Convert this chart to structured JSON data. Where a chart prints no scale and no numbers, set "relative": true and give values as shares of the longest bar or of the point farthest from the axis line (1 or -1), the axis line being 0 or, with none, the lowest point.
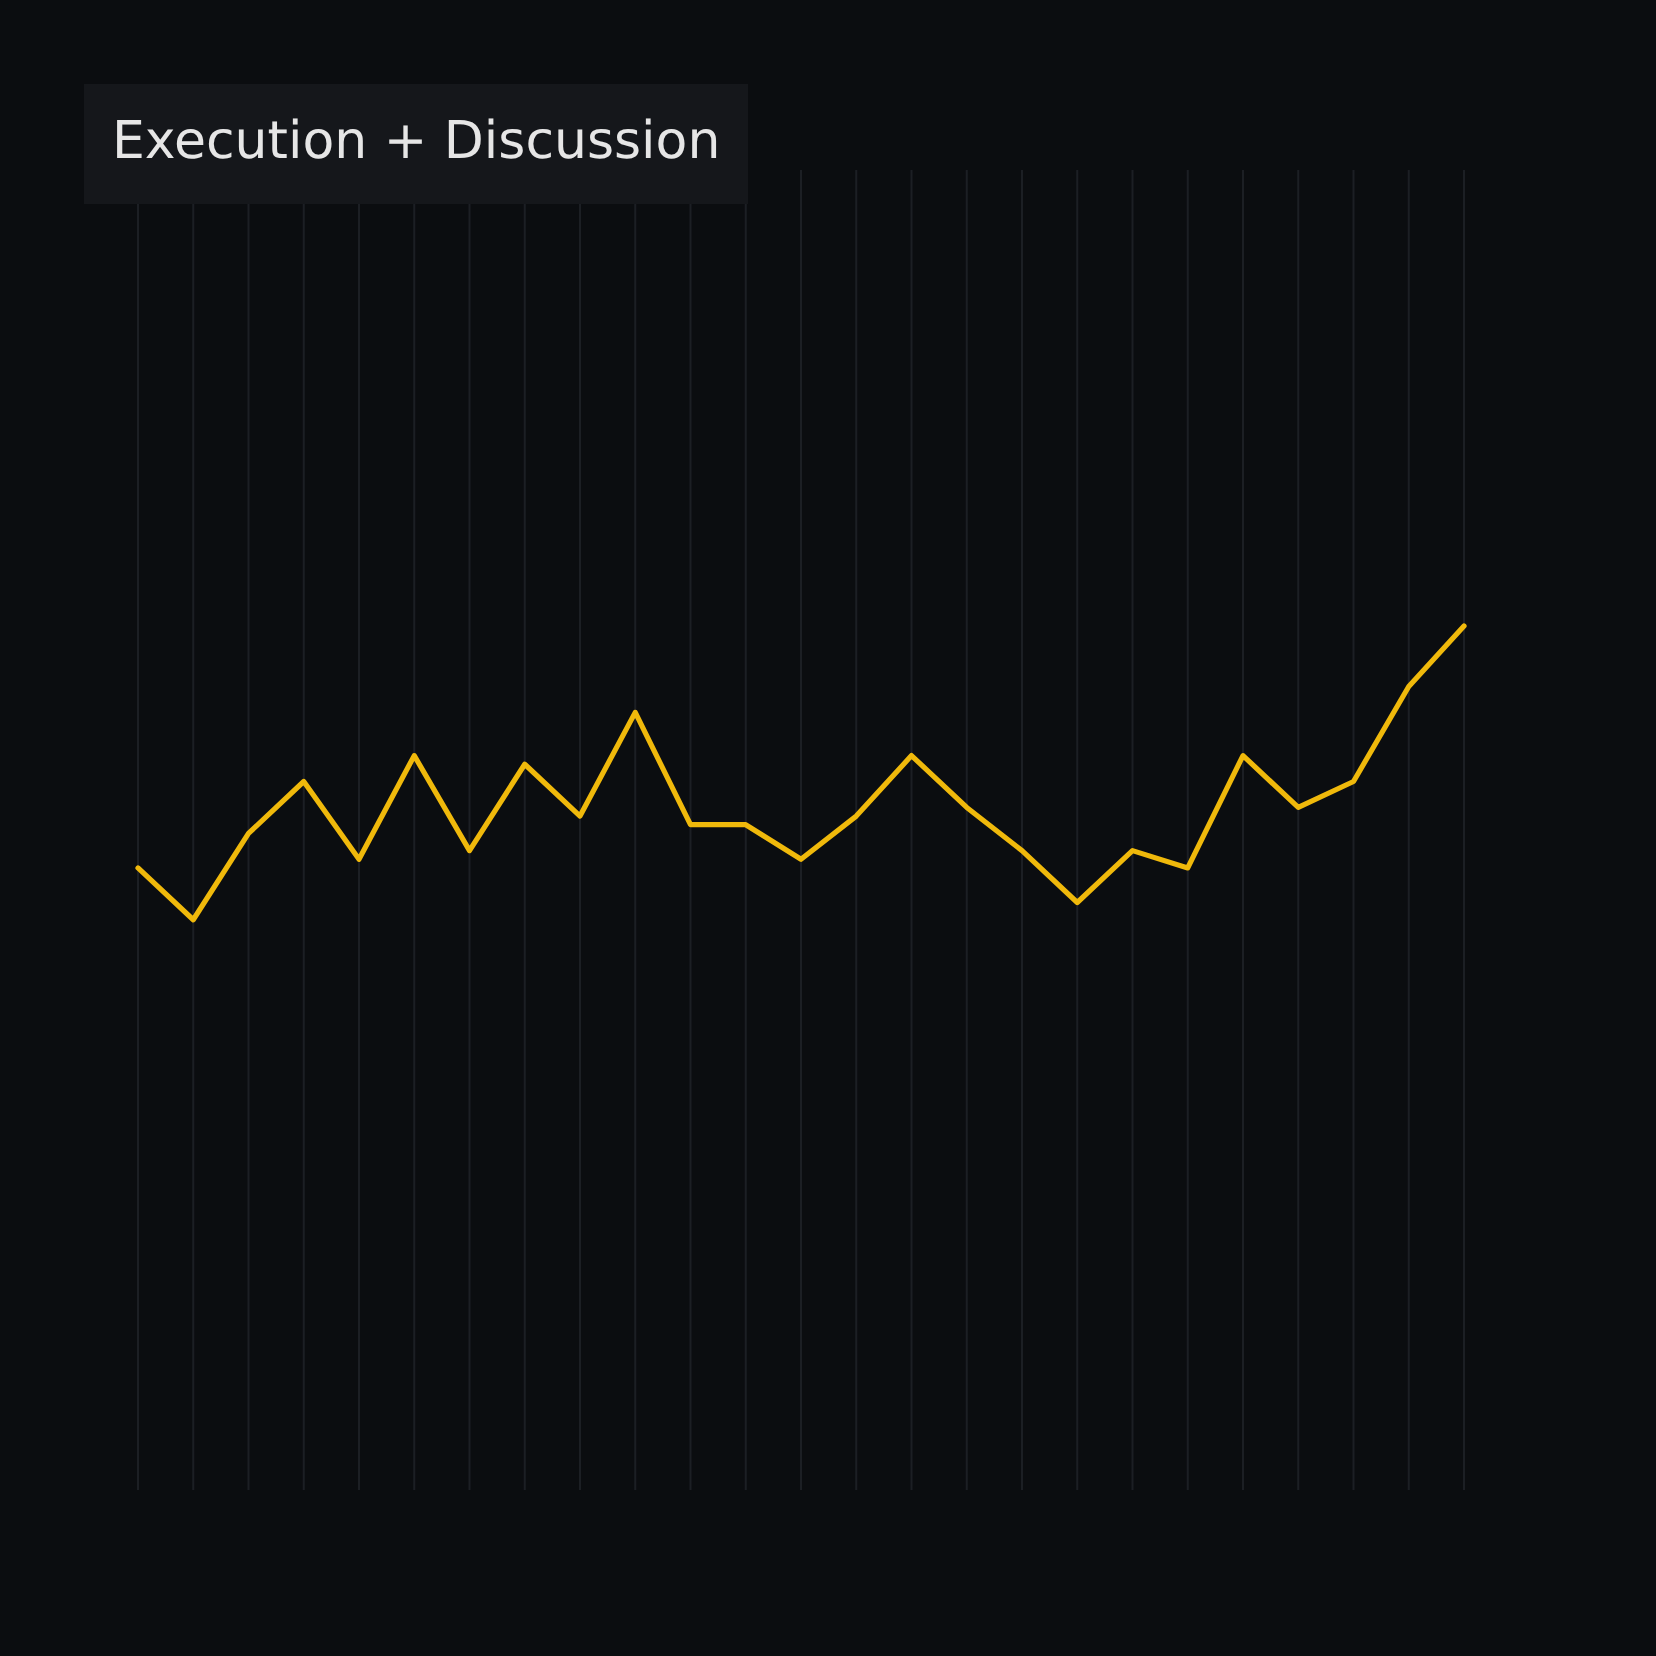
{
  "chart_data": {
    "type": "line",
    "title": "Execution + Discussion",
    "relative": true,
    "categories": [
      null,
      null,
      null,
      null,
      null,
      null,
      null,
      null,
      null,
      null,
      null,
      null,
      null,
      null,
      null,
      null,
      null,
      null,
      null,
      null,
      null,
      null,
      null,
      null,
      null
    ],
    "series": [
      {
        "color": "#f0b90b",
        "values": [
          0.72,
          0.66,
          0.76,
          0.82,
          0.73,
          0.85,
          0.74,
          0.84,
          0.78,
          0.9,
          0.77,
          0.77,
          0.73,
          0.78,
          0.85,
          0.79,
          0.74,
          0.68,
          0.74,
          0.72,
          0.85,
          0.79,
          0.82,
          0.93,
          1
        ]
      }
    ],
    "grid": "x",
    "marker": "none",
    "line_style": "solid"
  }
}
